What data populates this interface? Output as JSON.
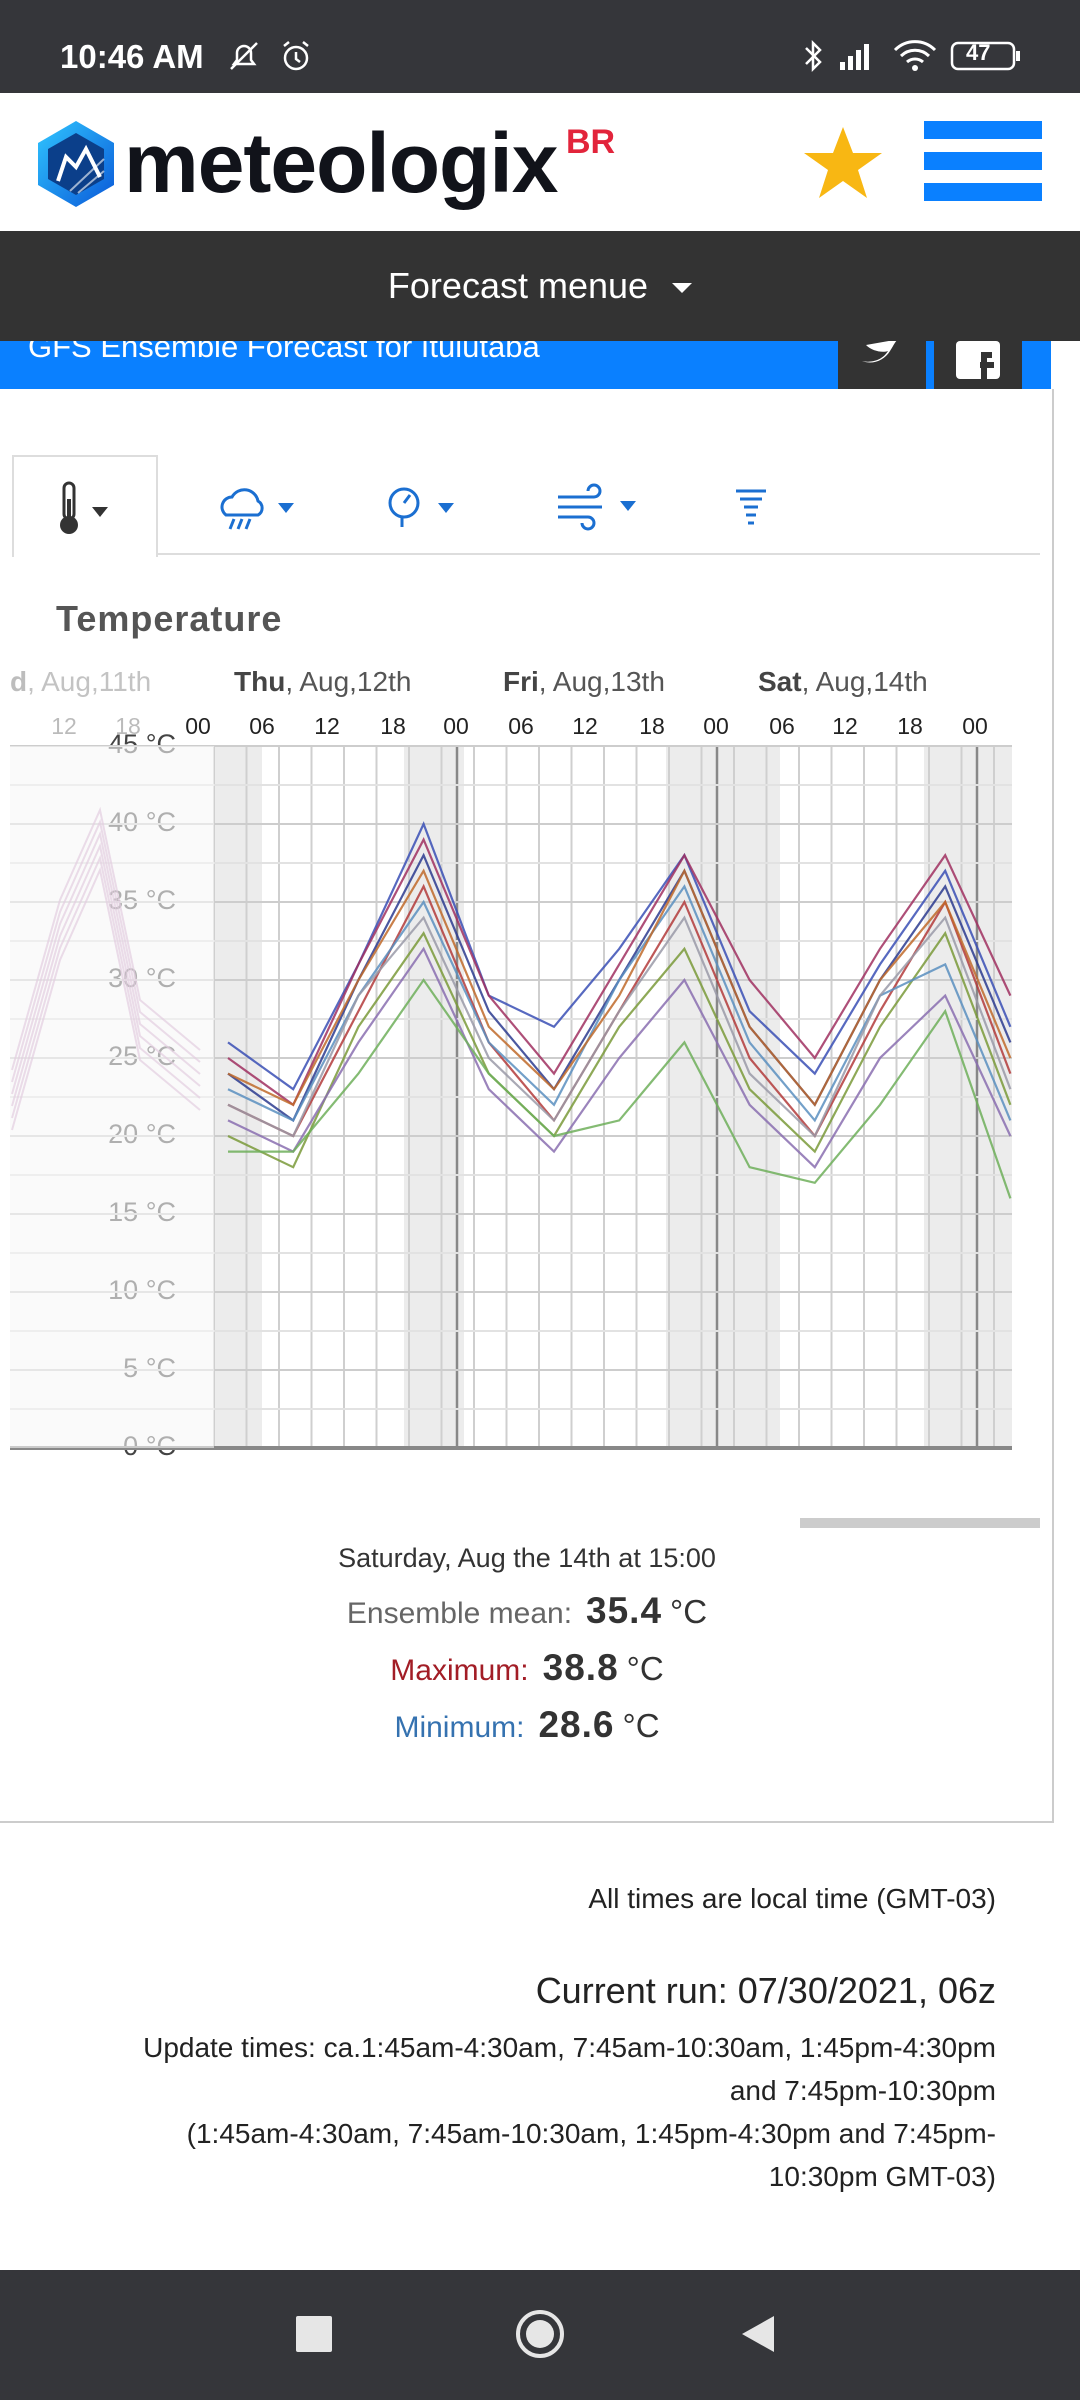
{
  "status_bar": {
    "time": "10:46 AM",
    "battery": "47"
  },
  "header": {
    "logo_text": "meteologix",
    "logo_suffix": "BR"
  },
  "forecast_menu": {
    "label": "Forecast menue"
  },
  "banner": {
    "title": "GFS Ensemble Forecast for Ituiutaba"
  },
  "tabs": [
    {
      "name": "temperature-icon",
      "active": true
    },
    {
      "name": "precipitation-icon",
      "active": false
    },
    {
      "name": "pressure-icon",
      "active": false
    },
    {
      "name": "wind-icon",
      "active": false
    },
    {
      "name": "gust-icon",
      "active": false
    }
  ],
  "chart_title": "Temperature",
  "day_labels": [
    {
      "prefix": "d",
      "rest": ", Aug,11th"
    },
    {
      "prefix": "Thu",
      "rest": ", Aug,12th"
    },
    {
      "prefix": "Fri",
      "rest": ", Aug,13th"
    },
    {
      "prefix": "Sat",
      "rest": ", Aug,14th"
    }
  ],
  "hour_labels": [
    "12",
    "18",
    "00",
    "06",
    "12",
    "18",
    "00",
    "06",
    "12",
    "18",
    "00",
    "06",
    "12",
    "18",
    "00"
  ],
  "y_labels": [
    "45 °C",
    "40 °C",
    "35 °C",
    "30 °C",
    "25 °C",
    "20 °C",
    "15 °C",
    "10 °C",
    "5 °C",
    "0 °C"
  ],
  "chart_data": {
    "type": "line",
    "title": "Temperature",
    "ylim": [
      0,
      45
    ],
    "y_unit": "°C",
    "x": [
      "Thu 00",
      "Thu 06",
      "Thu 12",
      "Thu 18",
      "Fri 00",
      "Fri 06",
      "Fri 12",
      "Fri 18",
      "Sat 00",
      "Sat 06",
      "Sat 12",
      "Sat 18",
      "Sun 00"
    ],
    "series_note": "GFS ensemble members",
    "series": [
      {
        "values": [
          24,
          21,
          30,
          38,
          28,
          23,
          30,
          37,
          27,
          22,
          30,
          36,
          26
        ]
      },
      {
        "values": [
          26,
          23,
          31,
          40,
          29,
          27,
          32,
          38,
          28,
          24,
          31,
          37,
          27
        ]
      },
      {
        "values": [
          22,
          20,
          28,
          36,
          26,
          21,
          28,
          35,
          25,
          20,
          28,
          35,
          24
        ]
      },
      {
        "values": [
          20,
          18,
          27,
          33,
          24,
          20,
          27,
          32,
          23,
          19,
          27,
          33,
          22
        ]
      },
      {
        "values": [
          25,
          22,
          31,
          39,
          29,
          24,
          31,
          38,
          30,
          25,
          32,
          38,
          29
        ]
      },
      {
        "values": [
          23,
          21,
          29,
          35,
          26,
          22,
          30,
          36,
          26,
          21,
          29,
          31,
          21
        ]
      },
      {
        "values": [
          21,
          19,
          26,
          32,
          23,
          19,
          25,
          30,
          22,
          18,
          25,
          29,
          20
        ]
      },
      {
        "values": [
          19,
          19,
          24,
          30,
          24,
          20,
          21,
          26,
          18,
          17,
          22,
          28,
          16
        ]
      },
      {
        "values": [
          24,
          22,
          30,
          37,
          27,
          23,
          29,
          37,
          27,
          22,
          30,
          35,
          25
        ]
      },
      {
        "values": [
          22,
          20,
          29,
          34,
          25,
          21,
          28,
          34,
          24,
          20,
          29,
          34,
          23
        ]
      }
    ]
  },
  "selection": {
    "timestamp": "Saturday, Aug the 14th at 15:00",
    "mean_label": "Ensemble mean:",
    "mean_value": "35.4",
    "max_label": "Maximum:",
    "max_value": "38.8",
    "min_label": "Minimum:",
    "min_value": "28.6",
    "unit": "°C"
  },
  "footer": {
    "timezone": "All times are local time (GMT-03)",
    "current_run": "Current run: 07/30/2021, 06z",
    "update_line1": "Update times: ca.1:45am-4:30am, 7:45am-10:30am, 1:45pm-4:30pm",
    "update_line2": "and 7:45pm-10:30pm",
    "update_line3": "(1:45am-4:30am, 7:45am-10:30am, 1:45pm-4:30pm and 7:45pm-",
    "update_line4": "10:30pm GMT-03)"
  },
  "colors": {
    "accent": "#0a80ff",
    "max": "#a21d26",
    "min": "#3572b0",
    "dark": "#333333"
  }
}
